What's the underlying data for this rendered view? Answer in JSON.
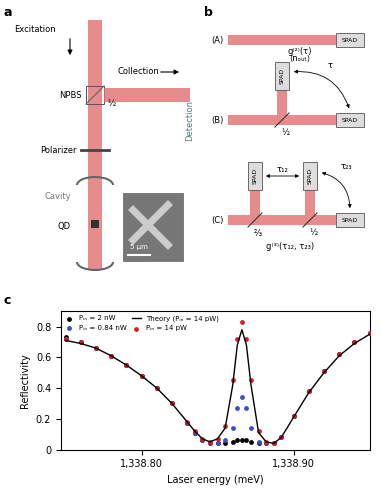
{
  "panels": {
    "a": {
      "label": "a",
      "excitation": "Excitation",
      "collection": "Collection",
      "npbs": "NPBS",
      "split": "½",
      "detection": "Detection",
      "polarizer": "Polarizer",
      "cavity": "Cavity",
      "qd": "QD",
      "scale_bar": "5 μm"
    },
    "b": {
      "label": "b",
      "rows": [
        {
          "label": "(A)",
          "detectors": [
            "SPAD"
          ],
          "splitters": [],
          "delays": [],
          "measure": "⟨nₒᵤₜ⟩"
        },
        {
          "label": "(B)",
          "detectors": [
            "SPAD",
            "SPAD"
          ],
          "splitters": [
            "½"
          ],
          "delays": [
            "τ"
          ],
          "measure": "g⁽²⁾(τ)"
        },
        {
          "label": "(C)",
          "detectors": [
            "SPAD",
            "SPAD",
            "SPAD"
          ],
          "splitters": [
            "⅔",
            "½"
          ],
          "delays": [
            "τ₁₂",
            "τ₂₃"
          ],
          "measure": "g⁽³⁾(τ₁₂, τ₂₃)"
        }
      ]
    },
    "c": {
      "label": "c"
    }
  },
  "chart_data": {
    "type": "scatter",
    "x_label": "Laser energy (meV)",
    "y_label": "Reflectivity",
    "x": [
      1338.75,
      1338.76,
      1338.77,
      1338.78,
      1338.79,
      1338.8,
      1338.81,
      1338.82,
      1338.83,
      1338.835,
      1338.84,
      1338.845,
      1338.85,
      1338.855,
      1338.86,
      1338.863,
      1338.866,
      1338.869,
      1338.872,
      1338.877,
      1338.882,
      1338.887,
      1338.892,
      1338.9,
      1338.91,
      1338.92,
      1338.93,
      1338.94,
      1338.95
    ],
    "series": [
      {
        "name": "Pᵢₙ = 2 nW",
        "type": "scatter",
        "marker": "o",
        "color": "#000000",
        "values": [
          0.73,
          0.7,
          0.66,
          0.61,
          0.55,
          0.48,
          0.4,
          0.3,
          0.17,
          0.11,
          0.06,
          0.04,
          0.04,
          0.04,
          0.05,
          0.06,
          0.06,
          0.06,
          0.05,
          0.04,
          0.04,
          0.04,
          0.08,
          0.22,
          0.38,
          0.51,
          0.62,
          0.7,
          0.76
        ]
      },
      {
        "name": "Pᵢₙ = 0.84 nW",
        "type": "scatter",
        "marker": "o",
        "color": "#3a50c8",
        "values": [
          0.72,
          0.7,
          0.66,
          0.61,
          0.55,
          0.48,
          0.4,
          0.3,
          0.17,
          0.11,
          0.06,
          0.04,
          0.04,
          0.06,
          0.14,
          0.27,
          0.34,
          0.27,
          0.14,
          0.05,
          0.04,
          0.04,
          0.08,
          0.22,
          0.38,
          0.51,
          0.62,
          0.7,
          0.76
        ]
      },
      {
        "name": "Theory (Pᵢₙ = 14 pW)",
        "type": "line",
        "line_style": "solid",
        "color": "#000000",
        "values": [
          0.71,
          0.69,
          0.66,
          0.61,
          0.55,
          0.48,
          0.4,
          0.3,
          0.18,
          0.12,
          0.07,
          0.05,
          0.07,
          0.14,
          0.42,
          0.68,
          0.78,
          0.68,
          0.42,
          0.11,
          0.05,
          0.04,
          0.08,
          0.21,
          0.37,
          0.5,
          0.61,
          0.69,
          0.75
        ]
      },
      {
        "name": "Pᵢₙ = 14 pW",
        "type": "scatter",
        "marker": "o",
        "color": "#d62020",
        "values": [
          0.72,
          0.7,
          0.66,
          0.61,
          0.55,
          0.48,
          0.4,
          0.3,
          0.18,
          0.12,
          0.07,
          0.05,
          0.07,
          0.15,
          0.45,
          0.72,
          0.83,
          0.72,
          0.45,
          0.12,
          0.05,
          0.04,
          0.08,
          0.22,
          0.38,
          0.51,
          0.62,
          0.7,
          0.76
        ]
      }
    ],
    "xlim": [
      1338.747,
      1338.95
    ],
    "xticks": [
      {
        "value": 1338.8,
        "label": "1,338.80"
      },
      {
        "value": 1338.9,
        "label": "1,338.90"
      }
    ],
    "ylim": [
      0,
      0.9
    ],
    "yticks": [
      0,
      0.2,
      0.4,
      0.6,
      0.8
    ],
    "legend": "upper left",
    "grid": false
  }
}
